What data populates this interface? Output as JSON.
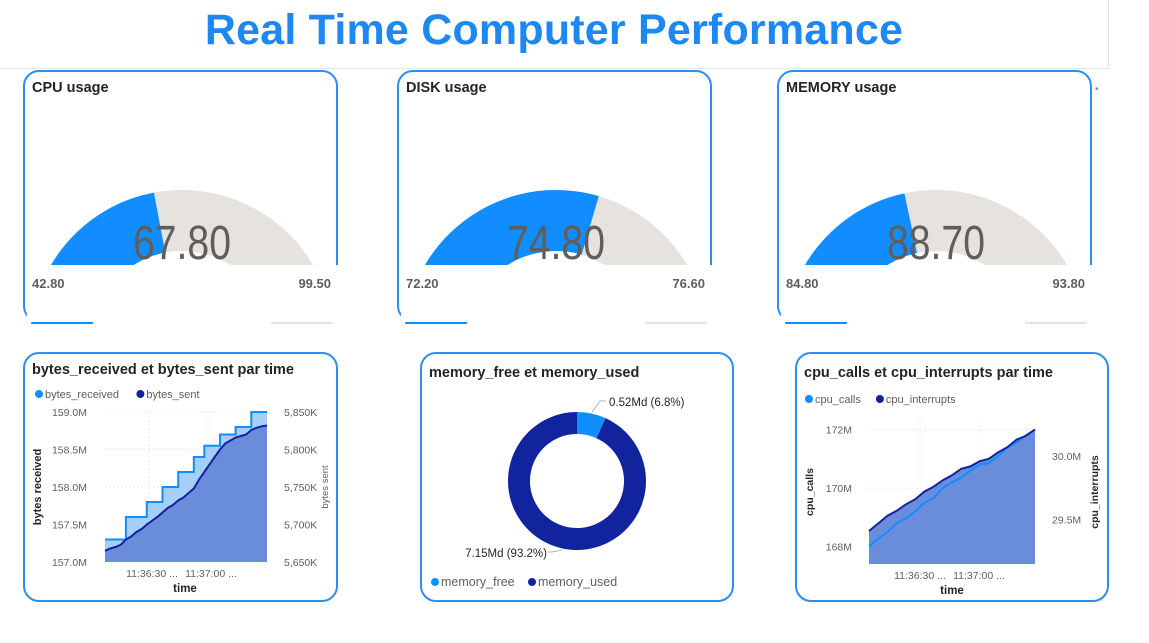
{
  "page_title": "Real Time Computer Performance",
  "gauges": [
    {
      "title": "CPU usage",
      "value": 67.8,
      "value_label": "67.80",
      "min": 42.8,
      "min_label": "42.80",
      "max": 99.5,
      "max_label": "99.50"
    },
    {
      "title": "DISK usage",
      "value": 74.8,
      "value_label": "74.80",
      "min": 72.2,
      "min_label": "72.20",
      "max": 76.6,
      "max_label": "76.60"
    },
    {
      "title": "MEMORY usage",
      "value": 88.7,
      "value_label": "88.70",
      "min": 84.8,
      "min_label": "84.80",
      "max": 93.8,
      "max_label": "93.80"
    }
  ],
  "colors": {
    "accent": "#118dff",
    "track": "#e6e2de",
    "dark_series": "#12239e",
    "light_series": "#118dff",
    "card_border": "#2b8ef4",
    "title": "#1e88f0"
  },
  "bytes_chart": {
    "title": "bytes_received et bytes_sent par time",
    "legend": [
      "bytes_received",
      "bytes_sent"
    ],
    "xlabel": "time",
    "ylabel_left": "bytes received",
    "ylabel_right": "bytes sent",
    "left_ticks": [
      "159.0M",
      "158.5M",
      "158.0M",
      "157.5M",
      "157.0M"
    ],
    "right_ticks": [
      "5,850K",
      "5,800K",
      "5,750K",
      "5,700K",
      "5,650K"
    ],
    "x_ticks": [
      "11:36:30 ...",
      "11:37:00 ..."
    ]
  },
  "memory_chart": {
    "title": "memory_free et memory_used",
    "legend": [
      "memory_free",
      "memory_used"
    ],
    "label_free": "0.52Md (6.8%)",
    "label_used": "7.15Md (93.2%)"
  },
  "cpu_chart": {
    "title": "cpu_calls et cpu_interrupts par time",
    "legend": [
      "cpu_calls",
      "cpu_interrupts"
    ],
    "xlabel": "time",
    "ylabel_left": "cpu_calls",
    "ylabel_right": "cpu_interrupts",
    "left_ticks": [
      "172M",
      "170M",
      "168M"
    ],
    "right_ticks": [
      "30.0M",
      "29.5M"
    ],
    "x_ticks": [
      "11:36:30 ...",
      "11:37:00 ..."
    ]
  },
  "chart_data": [
    {
      "type": "area",
      "title": "bytes_received et bytes_sent par time",
      "xlabel": "time",
      "ylabel": "bytes received",
      "ylim": [
        157.0,
        159.0
      ],
      "y2label": "bytes sent",
      "y2lim": [
        5650,
        5850
      ],
      "series": [
        {
          "name": "bytes_received",
          "axis": "left",
          "unit": "M",
          "values": [
            157.3,
            157.3,
            157.3,
            157.3,
            157.6,
            157.6,
            157.6,
            157.6,
            157.8,
            157.8,
            157.8,
            158.0,
            158.0,
            158.0,
            158.2,
            158.2,
            158.2,
            158.4,
            158.4,
            158.55,
            158.55,
            158.55,
            158.7,
            158.7,
            158.7,
            158.8,
            158.8,
            158.8,
            159.0,
            159.0,
            159.0,
            159.0
          ]
        },
        {
          "name": "bytes_sent",
          "axis": "right",
          "unit": "K",
          "values": [
            5665,
            5668,
            5670,
            5673,
            5680,
            5684,
            5690,
            5694,
            5700,
            5705,
            5710,
            5716,
            5722,
            5726,
            5732,
            5736,
            5742,
            5748,
            5760,
            5770,
            5780,
            5790,
            5800,
            5808,
            5812,
            5816,
            5818,
            5820,
            5826,
            5829,
            5831,
            5832
          ]
        }
      ]
    },
    {
      "type": "pie",
      "title": "memory_free et memory_used",
      "labels": [
        "memory_free",
        "memory_used"
      ],
      "values": [
        0.52,
        7.15
      ],
      "percent": [
        6.8,
        93.2
      ]
    },
    {
      "type": "area",
      "title": "cpu_calls et cpu_interrupts par time",
      "xlabel": "time",
      "ylabel": "cpu_calls",
      "ylim": [
        167.4,
        172.4
      ],
      "y2label": "cpu_interrupts",
      "y2lim": [
        29.15,
        30.3
      ],
      "series": [
        {
          "name": "cpu_calls",
          "axis": "left",
          "unit": "M",
          "values": [
            168.0,
            168.3,
            168.5,
            168.8,
            169.0,
            169.2,
            169.5,
            169.7,
            170.0,
            170.2,
            170.4,
            170.6,
            170.8,
            170.9,
            171.1,
            171.4,
            171.6,
            171.8,
            172.0
          ]
        },
        {
          "name": "cpu_interrupts",
          "axis": "right",
          "unit": "M",
          "values": [
            29.41,
            29.48,
            29.53,
            29.58,
            29.62,
            29.67,
            29.72,
            29.77,
            29.81,
            29.86,
            29.9,
            29.93,
            29.96,
            29.99,
            30.03,
            30.08,
            30.13,
            30.17,
            30.21
          ]
        }
      ]
    }
  ]
}
